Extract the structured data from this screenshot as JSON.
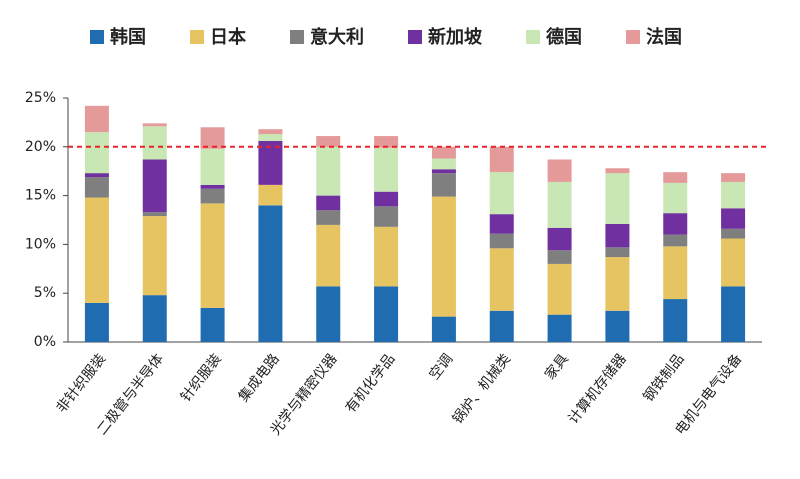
{
  "chart_data": {
    "type": "stacked_bar",
    "categories": [
      "非针织服装",
      "二极管与半导体",
      "针织服装",
      "集成电路",
      "光学与精密仪器",
      "有机化学品",
      "空调",
      "锅炉、机械类",
      "家具",
      "计算机存储器",
      "钢铁制品",
      "电机与电气设备"
    ],
    "series": [
      {
        "name": "韩国",
        "color": "#1f6cb0",
        "values": [
          4.0,
          4.8,
          3.5,
          14.0,
          5.7,
          5.7,
          2.6,
          3.2,
          2.8,
          3.2,
          4.4,
          5.7
        ]
      },
      {
        "name": "日本",
        "color": "#e6c462",
        "values": [
          10.8,
          8.1,
          10.7,
          2.1,
          6.3,
          6.1,
          12.3,
          6.4,
          5.2,
          5.5,
          5.4,
          4.9
        ]
      },
      {
        "name": "意大利",
        "color": "#7f7f7f",
        "values": [
          2.1,
          0.4,
          1.5,
          0,
          1.5,
          2.1,
          2.4,
          1.5,
          1.4,
          1.0,
          1.2,
          1.0
        ]
      },
      {
        "name": "新加坡",
        "color": "#7030a0",
        "values": [
          0.4,
          5.4,
          0.4,
          4.5,
          1.5,
          1.5,
          0.4,
          2.0,
          2.3,
          2.4,
          2.2,
          2.1
        ]
      },
      {
        "name": "德国",
        "color": "#c9e6b5",
        "values": [
          4.2,
          3.4,
          3.7,
          0.7,
          5.0,
          4.5,
          1.1,
          4.3,
          4.7,
          5.2,
          3.1,
          2.7
        ]
      },
      {
        "name": "法国",
        "color": "#e59a9a",
        "values": [
          2.7,
          0.3,
          2.2,
          0.5,
          1.1,
          1.2,
          1.2,
          2.6,
          2.3,
          0.5,
          1.1,
          0.9
        ]
      }
    ],
    "ylim": [
      0,
      25
    ],
    "yticks": [
      {
        "value": 0,
        "label": "0%"
      },
      {
        "value": 5,
        "label": "5%"
      },
      {
        "value": 10,
        "label": "10%"
      },
      {
        "value": 15,
        "label": "15%"
      },
      {
        "value": 20,
        "label": "20%"
      },
      {
        "value": 25,
        "label": "25%"
      }
    ],
    "reference_line": 20,
    "reference_color": "#e8242a"
  }
}
